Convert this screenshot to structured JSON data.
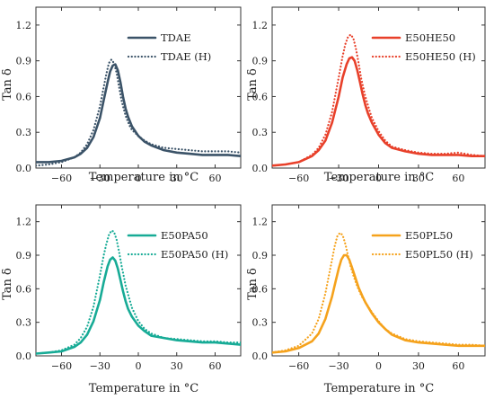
{
  "chart_data": [
    {
      "type": "line",
      "xlabel": "Temperature in °C",
      "ylabel": "Tan δ",
      "xlim": [
        -80,
        80
      ],
      "ylim": [
        0,
        1.35
      ],
      "xticks": [
        -60,
        -30,
        0,
        30,
        60
      ],
      "yticks": [
        0.0,
        0.3,
        0.6,
        0.9,
        1.2
      ],
      "xtick_labels": [
        "−60",
        "−30",
        "0",
        "30",
        "60"
      ],
      "ytick_labels": [
        "0.0",
        "0.3",
        "0.6",
        "0.9",
        "1.2"
      ],
      "legend_position": "top-right",
      "series": [
        {
          "name": "TDAE",
          "style": "solid",
          "color": "#3b5368",
          "x": [
            -80,
            -70,
            -60,
            -50,
            -45,
            -40,
            -35,
            -30,
            -27,
            -24,
            -22,
            -20,
            -18,
            -16,
            -14,
            -12,
            -10,
            -8,
            -5,
            0,
            5,
            10,
            20,
            30,
            40,
            50,
            60,
            70,
            80
          ],
          "y": [
            0.05,
            0.05,
            0.06,
            0.09,
            0.12,
            0.17,
            0.26,
            0.42,
            0.57,
            0.72,
            0.81,
            0.86,
            0.87,
            0.82,
            0.72,
            0.6,
            0.5,
            0.43,
            0.35,
            0.27,
            0.22,
            0.19,
            0.15,
            0.13,
            0.12,
            0.11,
            0.11,
            0.11,
            0.1
          ]
        },
        {
          "name": "TDAE (H)",
          "style": "dotted",
          "color": "#3b5368",
          "x": [
            -80,
            -70,
            -60,
            -50,
            -45,
            -40,
            -35,
            -30,
            -27,
            -25,
            -23,
            -21,
            -19,
            -17,
            -15,
            -13,
            -10,
            -7,
            -5,
            0,
            5,
            10,
            20,
            30,
            40,
            50,
            60,
            70,
            80
          ],
          "y": [
            0.02,
            0.03,
            0.05,
            0.09,
            0.13,
            0.2,
            0.32,
            0.52,
            0.68,
            0.79,
            0.88,
            0.91,
            0.88,
            0.8,
            0.68,
            0.56,
            0.44,
            0.36,
            0.32,
            0.27,
            0.23,
            0.2,
            0.17,
            0.16,
            0.15,
            0.14,
            0.14,
            0.14,
            0.13
          ]
        }
      ]
    },
    {
      "type": "line",
      "xlabel": "Temperature in °C",
      "ylabel": "Tan δ",
      "xlim": [
        -80,
        80
      ],
      "ylim": [
        0,
        1.35
      ],
      "xticks": [
        -60,
        -30,
        0,
        30,
        60
      ],
      "yticks": [
        0.0,
        0.3,
        0.6,
        0.9,
        1.2
      ],
      "xtick_labels": [
        "−60",
        "−30",
        "0",
        "30",
        "60"
      ],
      "ytick_labels": [
        "0.0",
        "0.3",
        "0.6",
        "0.9",
        "1.2"
      ],
      "legend_position": "top-right",
      "series": [
        {
          "name": "E50HE50",
          "style": "solid",
          "color": "#e8402a",
          "x": [
            -80,
            -70,
            -60,
            -50,
            -45,
            -40,
            -35,
            -30,
            -27,
            -24,
            -22,
            -20,
            -18,
            -16,
            -14,
            -12,
            -10,
            -8,
            -5,
            0,
            5,
            10,
            20,
            30,
            40,
            50,
            60,
            70,
            80
          ],
          "y": [
            0.02,
            0.03,
            0.05,
            0.1,
            0.15,
            0.23,
            0.38,
            0.6,
            0.76,
            0.87,
            0.92,
            0.93,
            0.9,
            0.82,
            0.72,
            0.62,
            0.53,
            0.46,
            0.38,
            0.28,
            0.21,
            0.17,
            0.14,
            0.12,
            0.11,
            0.11,
            0.11,
            0.1,
            0.1
          ]
        },
        {
          "name": "E50HE50 (H)",
          "style": "dotted",
          "color": "#e8402a",
          "x": [
            -80,
            -70,
            -60,
            -50,
            -45,
            -40,
            -35,
            -30,
            -27,
            -25,
            -23,
            -21,
            -19,
            -17,
            -15,
            -13,
            -10,
            -7,
            -5,
            0,
            5,
            10,
            20,
            30,
            40,
            50,
            60,
            70,
            80
          ],
          "y": [
            0.02,
            0.03,
            0.05,
            0.11,
            0.17,
            0.28,
            0.47,
            0.76,
            0.94,
            1.04,
            1.1,
            1.12,
            1.09,
            1.0,
            0.88,
            0.75,
            0.6,
            0.49,
            0.42,
            0.31,
            0.23,
            0.18,
            0.15,
            0.13,
            0.12,
            0.12,
            0.13,
            0.11,
            0.1
          ]
        }
      ]
    },
    {
      "type": "line",
      "xlabel": "Temperature in °C",
      "ylabel": "Tan δ",
      "xlim": [
        -80,
        80
      ],
      "ylim": [
        0,
        1.35
      ],
      "xticks": [
        -60,
        -30,
        0,
        30,
        60
      ],
      "yticks": [
        0.0,
        0.3,
        0.6,
        0.9,
        1.2
      ],
      "xtick_labels": [
        "−60",
        "−30",
        "0",
        "30",
        "60"
      ],
      "ytick_labels": [
        "0.0",
        "0.3",
        "0.6",
        "0.9",
        "1.2"
      ],
      "legend_position": "top-right",
      "series": [
        {
          "name": "E50PA50",
          "style": "solid",
          "color": "#17ab96",
          "x": [
            -80,
            -70,
            -60,
            -50,
            -45,
            -40,
            -35,
            -30,
            -27,
            -24,
            -22,
            -20,
            -18,
            -16,
            -14,
            -12,
            -10,
            -8,
            -5,
            0,
            5,
            10,
            20,
            30,
            40,
            50,
            60,
            70,
            80
          ],
          "y": [
            0.02,
            0.03,
            0.04,
            0.08,
            0.12,
            0.19,
            0.31,
            0.5,
            0.66,
            0.8,
            0.86,
            0.88,
            0.85,
            0.78,
            0.68,
            0.58,
            0.49,
            0.42,
            0.35,
            0.27,
            0.22,
            0.18,
            0.16,
            0.14,
            0.13,
            0.12,
            0.12,
            0.11,
            0.1
          ]
        },
        {
          "name": "E50PA50 (H)",
          "style": "dotted",
          "color": "#17ab96",
          "x": [
            -80,
            -70,
            -60,
            -50,
            -45,
            -40,
            -35,
            -30,
            -27,
            -25,
            -23,
            -21,
            -19,
            -17,
            -15,
            -13,
            -10,
            -7,
            -5,
            0,
            5,
            10,
            20,
            30,
            40,
            50,
            60,
            70,
            80
          ],
          "y": [
            0.02,
            0.03,
            0.05,
            0.1,
            0.16,
            0.26,
            0.44,
            0.72,
            0.9,
            1.0,
            1.08,
            1.12,
            1.11,
            1.04,
            0.93,
            0.8,
            0.63,
            0.51,
            0.43,
            0.31,
            0.24,
            0.2,
            0.16,
            0.15,
            0.14,
            0.13,
            0.13,
            0.12,
            0.12
          ]
        }
      ]
    },
    {
      "type": "line",
      "xlabel": "Temperature in °C",
      "ylabel": "Tan δ",
      "xlim": [
        -80,
        80
      ],
      "ylim": [
        0,
        1.35
      ],
      "xticks": [
        -60,
        -30,
        0,
        30,
        60
      ],
      "yticks": [
        0.0,
        0.3,
        0.6,
        0.9,
        1.2
      ],
      "xtick_labels": [
        "−60",
        "−30",
        "0",
        "30",
        "60"
      ],
      "ytick_labels": [
        "0.0",
        "0.3",
        "0.6",
        "0.9",
        "1.2"
      ],
      "legend_position": "top-right",
      "series": [
        {
          "name": "E50PL50",
          "style": "solid",
          "color": "#f5a21c",
          "x": [
            -80,
            -70,
            -60,
            -50,
            -45,
            -40,
            -35,
            -33,
            -30,
            -28,
            -26,
            -24,
            -22,
            -20,
            -18,
            -15,
            -12,
            -10,
            -5,
            0,
            5,
            10,
            20,
            30,
            40,
            50,
            60,
            70,
            80
          ],
          "y": [
            0.03,
            0.04,
            0.07,
            0.13,
            0.2,
            0.33,
            0.53,
            0.63,
            0.78,
            0.86,
            0.9,
            0.9,
            0.86,
            0.79,
            0.72,
            0.61,
            0.53,
            0.48,
            0.38,
            0.3,
            0.24,
            0.19,
            0.14,
            0.12,
            0.11,
            0.1,
            0.09,
            0.09,
            0.09
          ]
        },
        {
          "name": "E50PL50 (H)",
          "style": "dotted",
          "color": "#f5a21c",
          "x": [
            -80,
            -70,
            -60,
            -50,
            -45,
            -40,
            -37,
            -35,
            -33,
            -31,
            -29,
            -27,
            -25,
            -23,
            -21,
            -19,
            -16,
            -13,
            -10,
            -5,
            0,
            5,
            10,
            20,
            30,
            40,
            50,
            60,
            70,
            80
          ],
          "y": [
            0.03,
            0.05,
            0.09,
            0.2,
            0.33,
            0.56,
            0.74,
            0.86,
            0.98,
            1.07,
            1.1,
            1.08,
            1.0,
            0.9,
            0.8,
            0.72,
            0.62,
            0.54,
            0.48,
            0.39,
            0.31,
            0.24,
            0.2,
            0.15,
            0.13,
            0.12,
            0.11,
            0.1,
            0.1,
            0.09
          ]
        }
      ]
    }
  ]
}
